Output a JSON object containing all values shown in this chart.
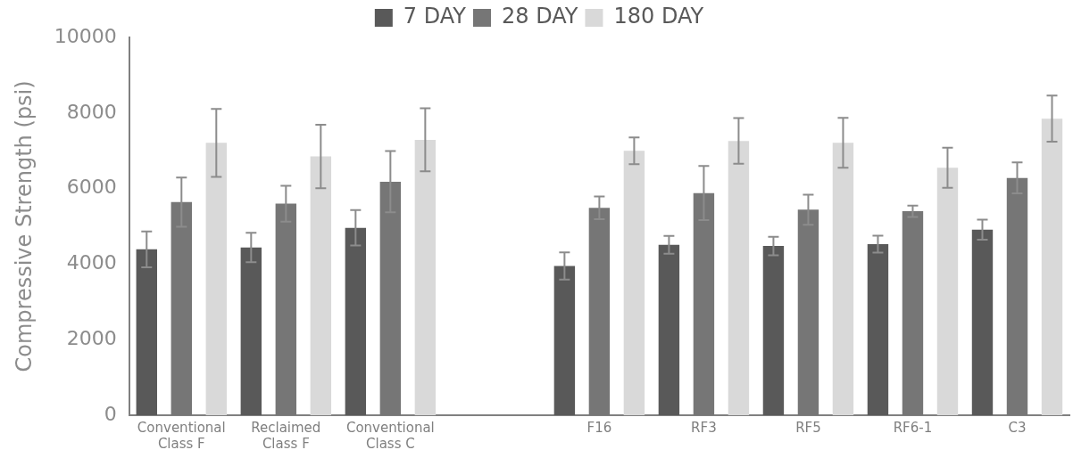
{
  "chart_data": {
    "type": "bar",
    "ylabel": "Compressive Strength (psi)",
    "categories": [
      "Conventional Class F",
      "Reclaimed Class F",
      "Conventional Class C",
      null,
      "F16",
      "RF3",
      "RF5",
      "RF6-1",
      "C3"
    ],
    "series": [
      {
        "name": "7 DAY",
        "color": "#595959",
        "values": [
          4390,
          4440,
          4960,
          null,
          3950,
          4510,
          4480,
          4530,
          4910
        ],
        "errors": [
          475,
          390,
          470,
          null,
          360,
          235,
          245,
          225,
          265
        ]
      },
      {
        "name": "28 DAY",
        "color": "#767676",
        "values": [
          5640,
          5600,
          6180,
          null,
          5490,
          5880,
          5440,
          5400,
          6280
        ],
        "errors": [
          650,
          475,
          810,
          null,
          300,
          715,
          400,
          150,
          410
        ]
      },
      {
        "name": "180 DAY",
        "color": "#d9d9d9",
        "values": [
          7210,
          6850,
          7290,
          null,
          7000,
          7260,
          7210,
          6550,
          7850
        ],
        "errors": [
          900,
          840,
          835,
          null,
          355,
          605,
          660,
          530,
          610
        ]
      }
    ],
    "ylim": [
      0,
      10000
    ],
    "yticks": [
      0,
      2000,
      4000,
      6000,
      8000,
      10000
    ],
    "grid": false,
    "legend": "top"
  }
}
